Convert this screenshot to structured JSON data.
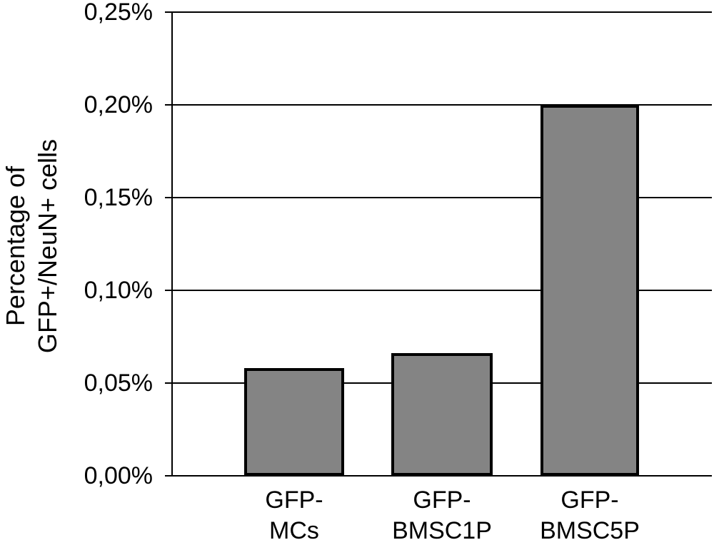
{
  "figure": {
    "background": "#ffffff",
    "text_color": "#000000"
  },
  "chart_data": {
    "type": "bar",
    "title": "",
    "xlabel": "",
    "ylabel": "Percentage of GFP+/NeuN+ cells",
    "ylabel_lines": [
      "Percentage of",
      "GFP+/NeuN+ cells"
    ],
    "categories": [
      "GFP-MCs",
      "GFP-BMSC1P",
      "GFP-BMSC5P"
    ],
    "category_label_lines": [
      [
        "GFP-",
        "MCs"
      ],
      [
        "GFP-",
        "BMSC1P"
      ],
      [
        "GFP-",
        "BMSC5P"
      ]
    ],
    "values": [
      0.058,
      0.066,
      0.2
    ],
    "unit": "%",
    "ylim": [
      0,
      0.25
    ],
    "y_tick_interval": 0.05,
    "y_tick_labels": [
      "0,00%",
      "0,05%",
      "0,10%",
      "0,15%",
      "0,20%",
      "0,25%"
    ],
    "decimal_separator": ",",
    "grid": true,
    "legend_position": "none",
    "bar_fill_color": "#848484",
    "bar_border_color": "#000000",
    "axis_color": "#000000"
  }
}
